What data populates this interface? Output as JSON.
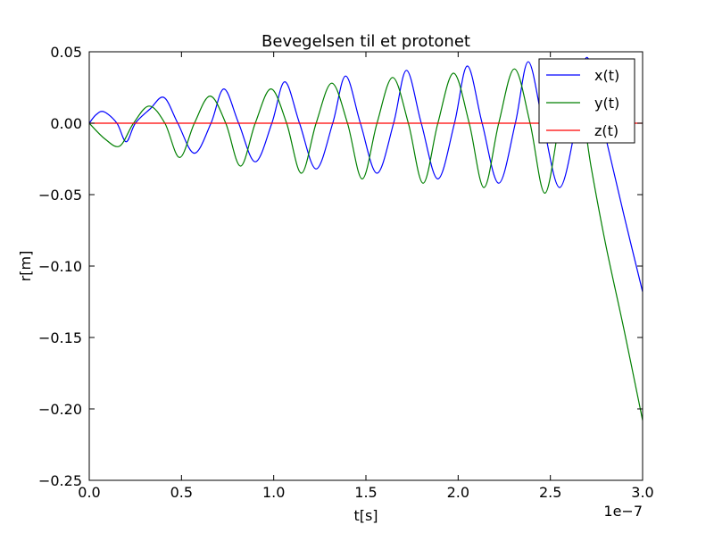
{
  "chart_data": {
    "type": "line",
    "title": "Bevegelsen til et protonet",
    "xlabel": "t[s]",
    "ylabel": "r[m]",
    "x_offset_label": "1e−7",
    "xlim": [
      0.0,
      3.0
    ],
    "ylim": [
      -0.25,
      0.05
    ],
    "x_unit_scale": 1e-07,
    "xticks": [
      0.0,
      0.5,
      1.0,
      1.5,
      2.0,
      2.5,
      3.0
    ],
    "xtick_labels": [
      "0.0",
      "0.5",
      "1.0",
      "1.5",
      "2.0",
      "2.5",
      "3.0"
    ],
    "yticks": [
      0.05,
      0.0,
      -0.05,
      -0.1,
      -0.15,
      -0.2,
      -0.25
    ],
    "ytick_labels": [
      "0.05",
      "0.00",
      "−0.05",
      "−0.10",
      "−0.15",
      "−0.20",
      "−0.25"
    ],
    "grid": false,
    "legend_position": "top-right",
    "series": [
      {
        "name": "x(t)",
        "color": "#0000ff",
        "x": [
          0.0,
          0.0375,
          0.08,
          0.15,
          0.2,
          0.25,
          0.33,
          0.405,
          0.48,
          0.57,
          0.66,
          0.73,
          0.81,
          0.9,
          0.99,
          1.06,
          1.14,
          1.23,
          1.32,
          1.39,
          1.47,
          1.56,
          1.65,
          1.72,
          1.8,
          1.89,
          1.98,
          2.05,
          2.13,
          2.22,
          2.31,
          2.38,
          2.46,
          2.55,
          2.64,
          2.7,
          2.8,
          2.9,
          3.0
        ],
        "y": [
          0.0,
          0.006,
          0.008,
          0.0,
          -0.013,
          0.0,
          0.01,
          0.018,
          0.0,
          -0.021,
          0.0,
          0.024,
          0.0,
          -0.027,
          0.0,
          0.029,
          0.0,
          -0.032,
          0.0,
          0.033,
          0.0,
          -0.035,
          0.0,
          0.037,
          0.0,
          -0.039,
          0.0,
          0.04,
          0.0,
          -0.042,
          0.0,
          0.043,
          0.0,
          -0.045,
          0.0,
          0.046,
          -0.01,
          -0.065,
          -0.118
        ]
      },
      {
        "name": "y(t)",
        "color": "#007f00",
        "x": [
          0.0,
          0.085,
          0.165,
          0.24,
          0.325,
          0.41,
          0.49,
          0.57,
          0.655,
          0.74,
          0.82,
          0.9,
          0.985,
          1.07,
          1.15,
          1.23,
          1.315,
          1.4,
          1.48,
          1.56,
          1.645,
          1.73,
          1.81,
          1.89,
          1.975,
          2.06,
          2.14,
          2.22,
          2.305,
          2.39,
          2.47,
          2.55,
          2.63,
          2.72,
          2.8,
          2.9,
          3.0
        ],
        "y": [
          0.0,
          -0.011,
          -0.016,
          0.0,
          0.012,
          0.0,
          -0.024,
          0.0,
          0.019,
          0.0,
          -0.03,
          0.0,
          0.024,
          0.0,
          -0.035,
          0.0,
          0.028,
          0.0,
          -0.039,
          0.0,
          0.032,
          0.0,
          -0.042,
          0.0,
          0.035,
          0.0,
          -0.045,
          0.0,
          0.038,
          0.0,
          -0.049,
          0.0,
          0.04,
          -0.03,
          -0.085,
          -0.145,
          -0.208
        ]
      },
      {
        "name": "z(t)",
        "color": "#ff0000",
        "x": [
          0.0,
          3.0
        ],
        "y": [
          0.0,
          0.0
        ]
      }
    ]
  }
}
